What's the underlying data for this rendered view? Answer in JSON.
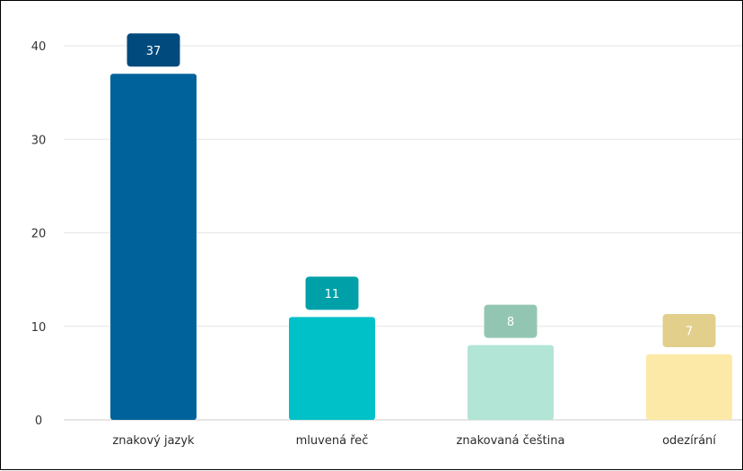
{
  "chart_data": {
    "type": "bar",
    "categories": [
      "znakový jazyk",
      "mluvená řeč",
      "znakovaná čeština",
      "odezírání"
    ],
    "values": [
      37,
      11,
      8,
      7
    ],
    "data_labels": [
      "37",
      "11",
      "8",
      "7"
    ],
    "y_ticks": [
      "0",
      "10",
      "20",
      "30",
      "40"
    ],
    "ylim": [
      0,
      40
    ],
    "grid": true,
    "legend": "none",
    "bar_colors": [
      "#00629b",
      "#00c0c8",
      "#b2e5d6",
      "#fde9a7"
    ],
    "label_colors": [
      "#004a7d",
      "#00a0a8",
      "#93c6b2",
      "#e3cf8c"
    ],
    "grid_color": "#e6e6e6",
    "axis_color": "#cccccc"
  }
}
